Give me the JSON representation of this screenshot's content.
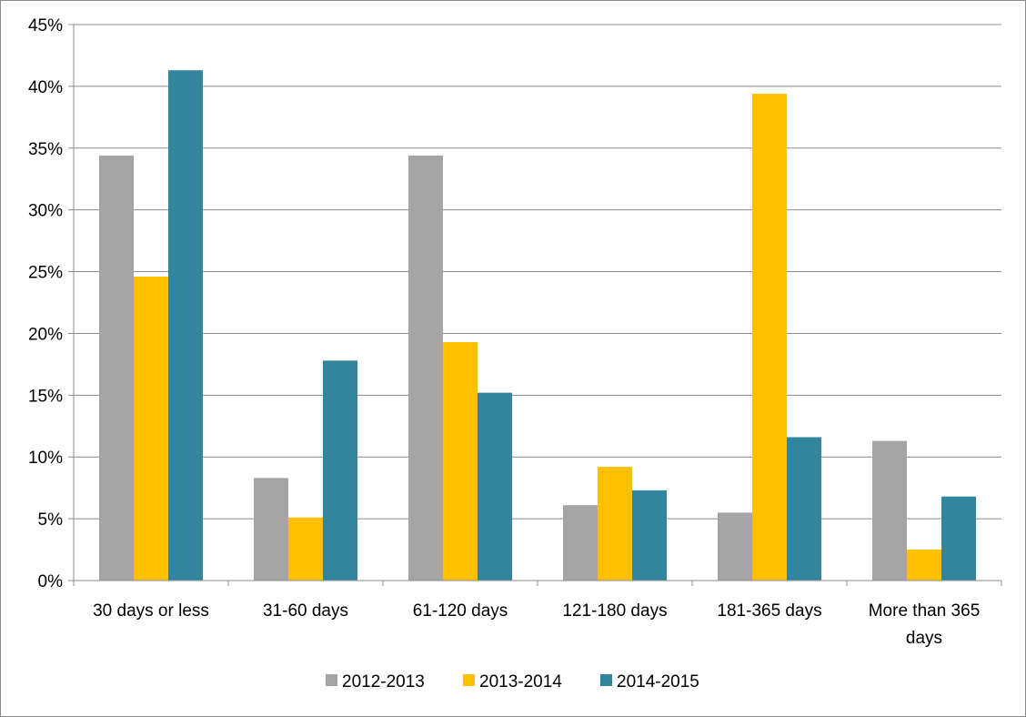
{
  "chart_data": {
    "type": "bar",
    "categories": [
      [
        "30 days or less"
      ],
      [
        "31-60 days"
      ],
      [
        "61-120 days"
      ],
      [
        "121-180 days"
      ],
      [
        "181-365 days"
      ],
      [
        "More than 365",
        "days"
      ]
    ],
    "series": [
      {
        "name": "2012-2013",
        "color": "#a5a5a5",
        "values": [
          34.4,
          8.3,
          34.4,
          6.1,
          5.5,
          11.3
        ]
      },
      {
        "name": "2013-2014",
        "color": "#ffc000",
        "values": [
          24.6,
          5.1,
          19.3,
          9.2,
          39.4,
          2.5
        ]
      },
      {
        "name": "2014-2015",
        "color": "#31859c",
        "values": [
          41.3,
          17.8,
          15.2,
          7.3,
          11.6,
          6.8
        ]
      }
    ],
    "ylim": [
      0,
      45
    ],
    "yticks": [
      0,
      5,
      10,
      15,
      20,
      25,
      30,
      35,
      40,
      45
    ],
    "ytick_format": "percent",
    "grid": true,
    "legend_position": "bottom",
    "title": "",
    "xlabel": "",
    "ylabel": ""
  }
}
